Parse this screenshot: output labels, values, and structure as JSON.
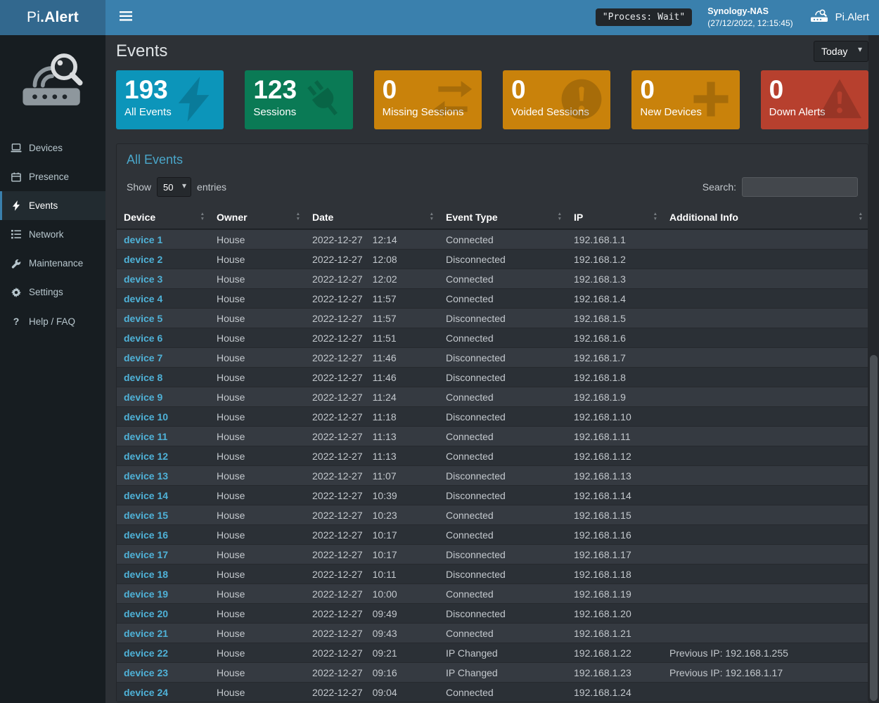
{
  "brand": {
    "prefix": "Pi",
    "suffix": ".Alert"
  },
  "topbar": {
    "process_badge": "\"Process: Wait\"",
    "nas_name": "Synology-NAS",
    "nas_time": "(27/12/2022, 12:15:45)",
    "brand_label": "Pi.Alert"
  },
  "sidebar": {
    "items": [
      {
        "label": "Devices",
        "icon": "laptop",
        "active": false
      },
      {
        "label": "Presence",
        "icon": "calendar",
        "active": false
      },
      {
        "label": "Events",
        "icon": "bolt",
        "active": true
      },
      {
        "label": "Network",
        "icon": "network",
        "active": false
      },
      {
        "label": "Maintenance",
        "icon": "wrench",
        "active": false
      },
      {
        "label": "Settings",
        "icon": "gear",
        "active": false
      },
      {
        "label": "Help / FAQ",
        "icon": "question",
        "active": false
      }
    ]
  },
  "page": {
    "title": "Events",
    "period": "Today"
  },
  "cards": [
    {
      "value": "193",
      "label": "All Events",
      "color": "#0c95ba",
      "icon": "bolt"
    },
    {
      "value": "123",
      "label": "Sessions",
      "color": "#0a7a55",
      "icon": "plug"
    },
    {
      "value": "0",
      "label": "Missing Sessions",
      "color": "#c9820b",
      "icon": "exchange"
    },
    {
      "value": "0",
      "label": "Voided Sessions",
      "color": "#c9820b",
      "icon": "exclamation-circle"
    },
    {
      "value": "0",
      "label": "New Devices",
      "color": "#c9820b",
      "icon": "plus"
    },
    {
      "value": "0",
      "label": "Down Alerts",
      "color": "#b7402e",
      "icon": "warning-triangle"
    }
  ],
  "events_box": {
    "title": "All Events",
    "show_label": "Show",
    "entries_label": "entries",
    "page_size": "50",
    "search_label": "Search:",
    "search_value": ""
  },
  "table": {
    "columns": [
      "Device",
      "Owner",
      "Date",
      "Event Type",
      "IP",
      "Additional Info"
    ],
    "rows": [
      {
        "device": "device 1",
        "owner": "House",
        "date": "2022-12-27",
        "time": "12:14",
        "event": "Connected",
        "ip": "192.168.1.1",
        "info": ""
      },
      {
        "device": "device 2",
        "owner": "House",
        "date": "2022-12-27",
        "time": "12:08",
        "event": "Disconnected",
        "ip": "192.168.1.2",
        "info": ""
      },
      {
        "device": "device 3",
        "owner": "House",
        "date": "2022-12-27",
        "time": "12:02",
        "event": "Connected",
        "ip": "192.168.1.3",
        "info": ""
      },
      {
        "device": "device 4",
        "owner": "House",
        "date": "2022-12-27",
        "time": "11:57",
        "event": "Connected",
        "ip": "192.168.1.4",
        "info": ""
      },
      {
        "device": "device 5",
        "owner": "House",
        "date": "2022-12-27",
        "time": "11:57",
        "event": "Disconnected",
        "ip": "192.168.1.5",
        "info": ""
      },
      {
        "device": "device 6",
        "owner": "House",
        "date": "2022-12-27",
        "time": "11:51",
        "event": "Connected",
        "ip": "192.168.1.6",
        "info": ""
      },
      {
        "device": "device 7",
        "owner": "House",
        "date": "2022-12-27",
        "time": "11:46",
        "event": "Disconnected",
        "ip": "192.168.1.7",
        "info": ""
      },
      {
        "device": "device 8",
        "owner": "House",
        "date": "2022-12-27",
        "time": "11:46",
        "event": "Disconnected",
        "ip": "192.168.1.8",
        "info": ""
      },
      {
        "device": "device 9",
        "owner": "House",
        "date": "2022-12-27",
        "time": "11:24",
        "event": "Connected",
        "ip": "192.168.1.9",
        "info": ""
      },
      {
        "device": "device 10",
        "owner": "House",
        "date": "2022-12-27",
        "time": "11:18",
        "event": "Disconnected",
        "ip": "192.168.1.10",
        "info": ""
      },
      {
        "device": "device 11",
        "owner": "House",
        "date": "2022-12-27",
        "time": "11:13",
        "event": "Connected",
        "ip": "192.168.1.11",
        "info": ""
      },
      {
        "device": "device 12",
        "owner": "House",
        "date": "2022-12-27",
        "time": "11:13",
        "event": "Connected",
        "ip": "192.168.1.12",
        "info": ""
      },
      {
        "device": "device 13",
        "owner": "House",
        "date": "2022-12-27",
        "time": "11:07",
        "event": "Disconnected",
        "ip": "192.168.1.13",
        "info": ""
      },
      {
        "device": "device 14",
        "owner": "House",
        "date": "2022-12-27",
        "time": "10:39",
        "event": "Disconnected",
        "ip": "192.168.1.14",
        "info": ""
      },
      {
        "device": "device 15",
        "owner": "House",
        "date": "2022-12-27",
        "time": "10:23",
        "event": "Connected",
        "ip": "192.168.1.15",
        "info": ""
      },
      {
        "device": "device 16",
        "owner": "House",
        "date": "2022-12-27",
        "time": "10:17",
        "event": "Connected",
        "ip": "192.168.1.16",
        "info": ""
      },
      {
        "device": "device 17",
        "owner": "House",
        "date": "2022-12-27",
        "time": "10:17",
        "event": "Disconnected",
        "ip": "192.168.1.17",
        "info": ""
      },
      {
        "device": "device 18",
        "owner": "House",
        "date": "2022-12-27",
        "time": "10:11",
        "event": "Disconnected",
        "ip": "192.168.1.18",
        "info": ""
      },
      {
        "device": "device 19",
        "owner": "House",
        "date": "2022-12-27",
        "time": "10:00",
        "event": "Connected",
        "ip": "192.168.1.19",
        "info": ""
      },
      {
        "device": "device 20",
        "owner": "House",
        "date": "2022-12-27",
        "time": "09:49",
        "event": "Disconnected",
        "ip": "192.168.1.20",
        "info": ""
      },
      {
        "device": "device 21",
        "owner": "House",
        "date": "2022-12-27",
        "time": "09:43",
        "event": "Connected",
        "ip": "192.168.1.21",
        "info": ""
      },
      {
        "device": "device 22",
        "owner": "House",
        "date": "2022-12-27",
        "time": "09:21",
        "event": "IP Changed",
        "ip": "192.168.1.22",
        "info": "Previous IP: 192.168.1.255"
      },
      {
        "device": "device 23",
        "owner": "House",
        "date": "2022-12-27",
        "time": "09:16",
        "event": "IP Changed",
        "ip": "192.168.1.23",
        "info": "Previous IP: 192.168.1.17"
      },
      {
        "device": "device 24",
        "owner": "House",
        "date": "2022-12-27",
        "time": "09:04",
        "event": "Connected",
        "ip": "192.168.1.24",
        "info": ""
      }
    ]
  }
}
